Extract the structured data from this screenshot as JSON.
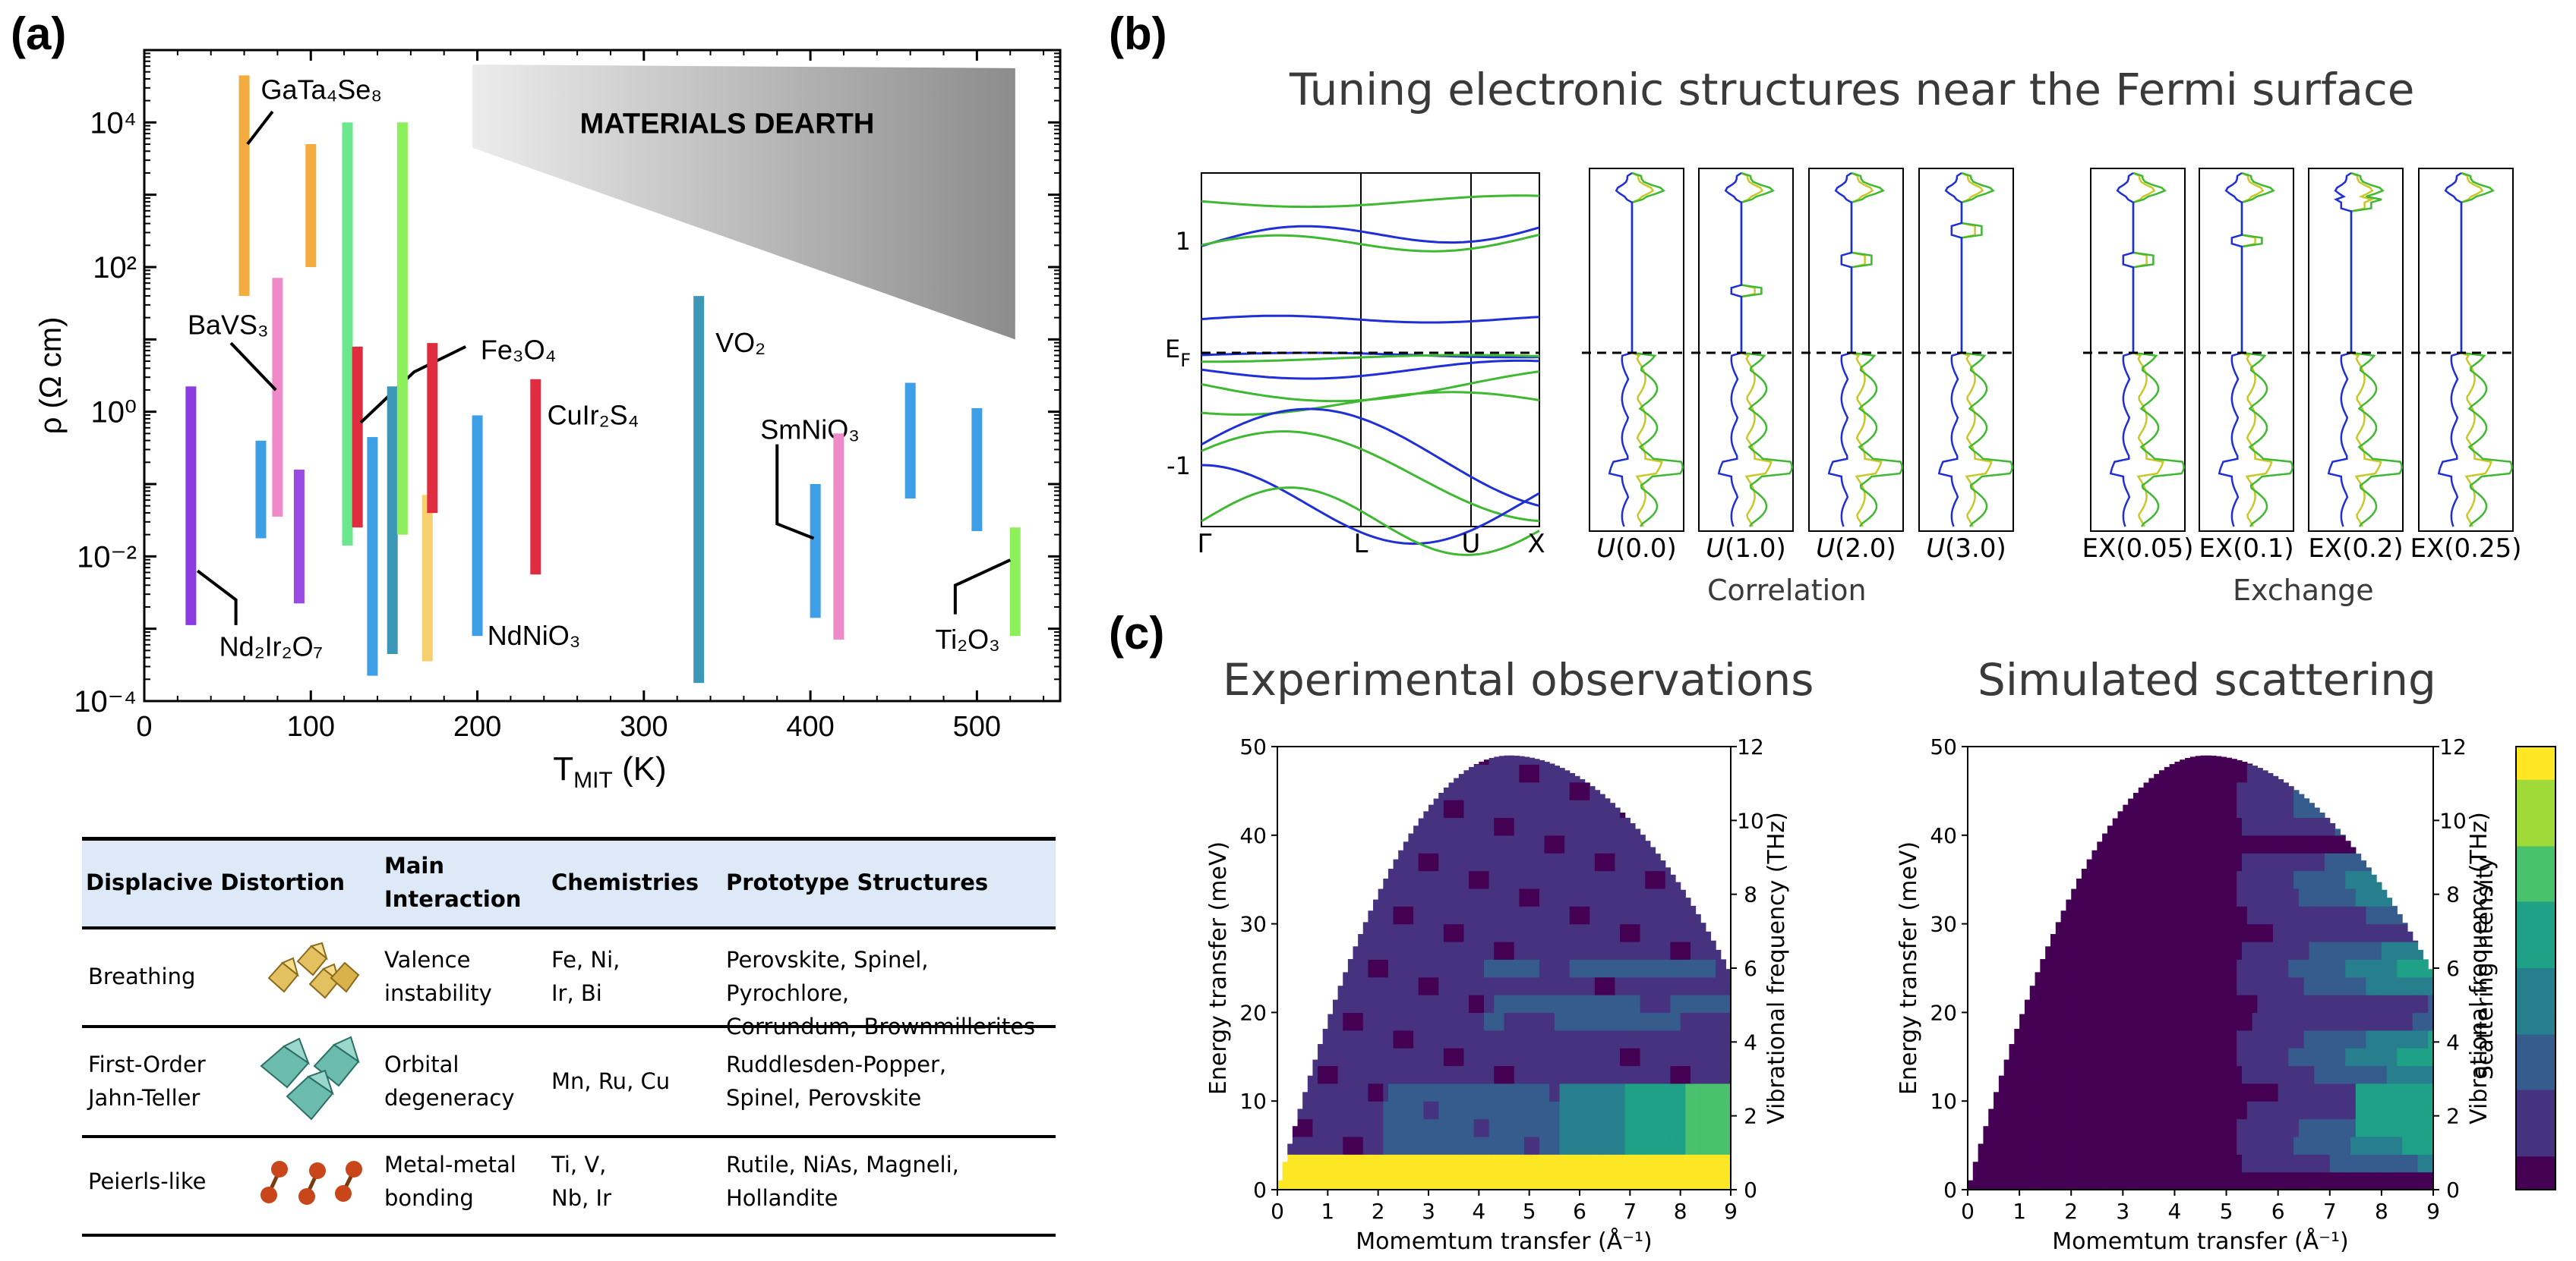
{
  "panel_labels": [
    "(a)",
    "(b)",
    "(c)"
  ],
  "panel_b": {
    "title": "Tuning electronic structures near the Fermi surface",
    "correlation_label": "Correlation",
    "exchange_label": "Exchange",
    "ef_label": "E",
    "ef_sub": "F",
    "correlation_panels": [
      "(0.0)",
      "(1.0)",
      "(2.0)",
      "(3.0)"
    ],
    "correlation_prefix": "U",
    "exchange_panels": [
      "EX(0.05)",
      "EX(0.1)",
      "EX(0.2)",
      "EX(0.25)"
    ],
    "band_kpoints": [
      "Γ",
      "L",
      "U",
      "X"
    ],
    "band_yticks": [
      "1",
      "-1"
    ],
    "colors": {
      "spin_up": "#1f2fd8",
      "spin_down": "#3fb832",
      "total": "#c8c82a"
    }
  },
  "panel_c": {
    "left_title": "Experimental observations",
    "right_title": "Simulated scattering",
    "colorbar_label": "Scattering intensity"
  },
  "table": {
    "headers": [
      "Displacive Distortion",
      "Main\nInteraction",
      "Chemistries",
      "Prototype Structures"
    ],
    "rows": [
      {
        "distortion": "Breathing",
        "interaction": "Valence\ninstability",
        "chemistries": "Fe, Ni,\nIr, Bi",
        "structures": "Perovskite, Spinel, Pyrochlore,\nCorrundum, Brownmillerites"
      },
      {
        "distortion": "First-Order\nJahn-Teller",
        "interaction": "Orbital\ndegeneracy",
        "chemistries": "Mn, Ru, Cu",
        "structures": "Ruddlesden-Popper,\nSpinel, Perovskite"
      },
      {
        "distortion": "Peierls-like",
        "interaction": "Metal-metal\nbonding",
        "chemistries": "Ti, V,\nNb, Ir",
        "structures": "Rutile, NiAs, Magneli,\nHollandite"
      }
    ]
  },
  "chart_data": [
    {
      "type": "bar",
      "subtype": "range-bars",
      "xlabel": "T",
      "xlabel_sub": "MIT",
      "xlabel_unit": "(K)",
      "ylabel": "ρ (Ω cm)",
      "xlim": [
        0,
        550
      ],
      "ylim_log10": [
        -4,
        5
      ],
      "xticks": [
        0,
        100,
        200,
        300,
        400,
        500
      ],
      "yticks": [
        "10⁴",
        "10²",
        "10⁰",
        "10⁻²",
        "10⁻⁴"
      ],
      "yticks_log10": [
        4,
        2,
        0,
        -2,
        -4
      ],
      "annotation_region": "MATERIALS DEARTH",
      "bars": [
        {
          "t": 28,
          "log_lo": -2.95,
          "log_hi": 0.35,
          "color": "#8b3be0",
          "label": "Nd₂Ir₂O₇",
          "label_x": 45,
          "label_log": -3.25,
          "leader": [
            [
              32,
              -2.2
            ],
            [
              55,
              -2.6
            ],
            [
              55,
              -2.95
            ]
          ]
        },
        {
          "t": 60,
          "log_lo": 1.6,
          "log_hi": 4.65,
          "color": "#f3ad3f",
          "label": "GaTa₄Se₈",
          "label_x": 70,
          "label_log": 4.45,
          "leader": [
            [
              62,
              3.7
            ],
            [
              77,
              4.15
            ]
          ]
        },
        {
          "t": 70,
          "log_lo": -1.75,
          "log_hi": -0.4,
          "color": "#3f9fe6"
        },
        {
          "t": 80,
          "log_lo": -1.45,
          "log_hi": 1.85,
          "color": "#ef8ac9",
          "label": "BaVS₃",
          "label_x": 26,
          "label_log": 1.2,
          "leader": [
            [
              52,
              0.95
            ],
            [
              79,
              0.3
            ]
          ]
        },
        {
          "t": 93,
          "log_lo": -2.65,
          "log_hi": -0.8,
          "color": "#9a4be3"
        },
        {
          "t": 100,
          "log_lo": 2.0,
          "log_hi": 3.7,
          "color": "#f3ad3f"
        },
        {
          "t": 122,
          "log_lo": -1.85,
          "log_hi": 4.0,
          "color": "#6be88e"
        },
        {
          "t": 128,
          "log_lo": -1.6,
          "log_hi": 0.9,
          "color": "#e02c3f",
          "label": "Fe₃O₄",
          "label_x": 202,
          "label_log": 0.85,
          "leader": [
            [
              130,
              -0.15
            ],
            [
              162,
              0.55
            ],
            [
              193,
              0.9
            ]
          ]
        },
        {
          "t": 137,
          "log_lo": -3.65,
          "log_hi": -0.35,
          "color": "#3f9fe6"
        },
        {
          "t": 149,
          "log_lo": -3.35,
          "log_hi": 0.35,
          "color": "#3d98b8"
        },
        {
          "t": 155,
          "log_lo": -1.7,
          "log_hi": 4.0,
          "color": "#8df05a"
        },
        {
          "t": 170,
          "log_lo": -3.45,
          "log_hi": -1.15,
          "color": "#f7d070"
        },
        {
          "t": 173,
          "log_lo": -1.4,
          "log_hi": 0.95,
          "color": "#e02c3f"
        },
        {
          "t": 200,
          "log_lo": -3.1,
          "log_hi": -0.05,
          "color": "#3f9fe6",
          "label": "NdNiO₃",
          "label_x": 206,
          "label_log": -3.1
        },
        {
          "t": 235,
          "log_lo": -2.25,
          "log_hi": 0.45,
          "color": "#e02c3f",
          "label": "CuIr₂S₄",
          "label_x": 242,
          "label_log": -0.05
        },
        {
          "t": 333,
          "log_lo": -3.75,
          "log_hi": 1.6,
          "color": "#3d98b8",
          "label": "VO₂",
          "label_x": 343,
          "label_log": 0.95
        },
        {
          "t": 403,
          "log_lo": -2.85,
          "log_hi": -1.0,
          "color": "#3f9fe6",
          "label": "SmNiO₃",
          "label_x": 370,
          "label_log": -0.25,
          "leader": [
            [
              380,
              -0.45
            ],
            [
              380,
              -1.55
            ],
            [
              402,
              -1.75
            ]
          ]
        },
        {
          "t": 417,
          "log_lo": -3.15,
          "log_hi": -0.3,
          "color": "#ef8ac9"
        },
        {
          "t": 460,
          "log_lo": -1.2,
          "log_hi": 0.4,
          "color": "#3f9fe6"
        },
        {
          "t": 500,
          "log_lo": -1.65,
          "log_hi": 0.05,
          "color": "#3f9fe6"
        },
        {
          "t": 523,
          "log_lo": -3.1,
          "log_hi": -1.6,
          "color": "#8df05a",
          "label": "Ti₂O₃",
          "label_x": 475,
          "label_log": -3.15,
          "leader": [
            [
              487,
              -2.8
            ],
            [
              487,
              -2.4
            ],
            [
              520,
              -2.05
            ]
          ]
        }
      ]
    },
    {
      "type": "line",
      "subtype": "band-structure",
      "kpoints": [
        "Γ",
        "L",
        "U",
        "X"
      ],
      "yticks": [
        1,
        -1
      ],
      "ylim": [
        -1.6,
        1.6
      ],
      "fermi_level": 0.0
    },
    {
      "type": "line",
      "subtype": "density-of-states",
      "panels": [
        "U(0.0)",
        "U(1.0)",
        "U(2.0)",
        "U(3.0)",
        "EX(0.05)",
        "EX(0.1)",
        "EX(0.2)",
        "EX(0.25)"
      ]
    },
    {
      "type": "heatmap",
      "title": "Experimental observations",
      "xlabel": "Momemtum transfer (Å⁻¹)",
      "ylabel": "Energy transfer (meV)",
      "ylabel_right": "Vibrational frequency (THz)",
      "xlim": [
        0,
        9
      ],
      "ylim": [
        0,
        50
      ],
      "ylim_right": [
        0,
        12
      ],
      "xticks": [
        0,
        1,
        2,
        3,
        4,
        5,
        6,
        7,
        8,
        9
      ],
      "yticks": [
        0,
        10,
        20,
        30,
        40,
        50
      ],
      "yticks_right": [
        0,
        2,
        4,
        6,
        8,
        10,
        12
      ],
      "colormap": "viridis"
    },
    {
      "type": "heatmap",
      "title": "Simulated scattering",
      "xlabel": "Momemtum transfer (Å⁻¹)",
      "ylabel": "Energy transfer (meV)",
      "ylabel_right": "Vibrational frequency (THz)",
      "colorbar_label": "Scattering intensity",
      "xlim": [
        0,
        9
      ],
      "ylim": [
        0,
        50
      ],
      "ylim_right": [
        0,
        12
      ],
      "xticks": [
        0,
        1,
        2,
        3,
        4,
        5,
        6,
        7,
        8,
        9
      ],
      "yticks": [
        0,
        10,
        20,
        30,
        40,
        50
      ],
      "yticks_right": [
        0,
        2,
        4,
        6,
        8,
        10,
        12
      ],
      "colormap": "viridis"
    }
  ]
}
